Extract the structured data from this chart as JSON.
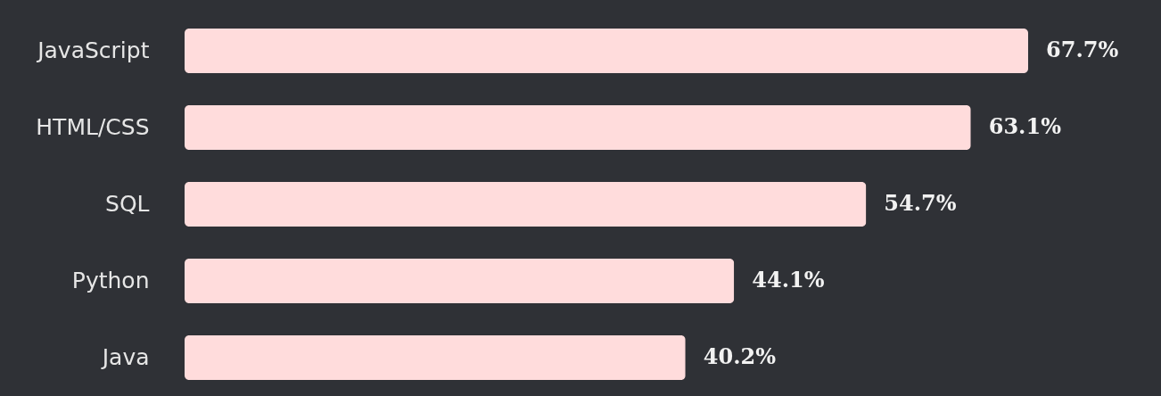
{
  "chart_data": {
    "type": "bar",
    "orientation": "horizontal",
    "categories": [
      "JavaScript",
      "HTML/CSS",
      "SQL",
      "Python",
      "Java"
    ],
    "values": [
      67.7,
      63.1,
      54.7,
      44.1,
      40.2
    ],
    "value_labels": [
      "67.7%",
      "63.1%",
      "54.7%",
      "44.1%",
      "40.2%"
    ],
    "color": "#ffdcdc",
    "tick_labels": "y"
  }
}
